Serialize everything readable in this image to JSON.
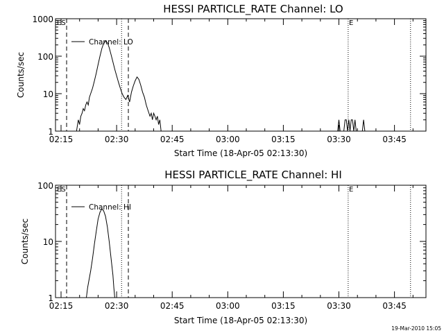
{
  "chart_data": [
    {
      "type": "line",
      "title": "HESSI PARTICLE_RATE Channel: LO",
      "xlabel": "Start Time (18-Apr-05 02:13:30)",
      "ylabel": "Counts/sec",
      "yscale": "log",
      "ylim": [
        1,
        1000
      ],
      "xlim": [
        "02:13:30",
        "03:53:30"
      ],
      "xticks": [
        "02:15",
        "02:30",
        "02:45",
        "03:00",
        "03:15",
        "03:30",
        "03:45"
      ],
      "yticks": [
        "1",
        "10",
        "100",
        "1000"
      ],
      "legend": "top-left",
      "markers": [
        {
          "time": "02:16:30",
          "style": "dashed"
        },
        {
          "time": "02:31:20",
          "style": "dotted"
        },
        {
          "time": "02:33:10",
          "style": "dashed"
        },
        {
          "time": "03:32:30",
          "style": "dotted",
          "label": "E"
        },
        {
          "time": "03:49:20",
          "style": "dotted"
        }
      ],
      "marker_labels": {
        "start": "ES",
        "end": "E"
      },
      "series": [
        {
          "name": "Channel: LO",
          "x": [
            "02:19:10",
            "02:19:40",
            "02:20:00",
            "02:20:20",
            "02:20:40",
            "02:21:00",
            "02:21:20",
            "02:21:40",
            "02:22:00",
            "02:22:20",
            "02:22:40",
            "02:23:00",
            "02:23:30",
            "02:24:00",
            "02:24:30",
            "02:25:00",
            "02:25:30",
            "02:26:00",
            "02:26:30",
            "02:27:00",
            "02:27:30",
            "02:28:00",
            "02:28:30",
            "02:29:00",
            "02:29:30",
            "02:30:00",
            "02:30:30",
            "02:31:00",
            "02:31:30",
            "02:32:00",
            "02:32:30",
            "02:33:00",
            "02:33:30",
            "02:34:00",
            "02:34:30",
            "02:35:00",
            "02:35:30",
            "02:36:00",
            "02:36:30",
            "02:37:00",
            "02:37:30",
            "02:38:00",
            "02:38:30",
            "02:39:00",
            "02:39:20",
            "02:39:40",
            "02:40:00",
            "02:40:20",
            "02:40:40",
            "02:41:00",
            "02:41:20",
            "02:41:40",
            "02:42:00"
          ],
          "y": [
            1,
            2,
            1.5,
            2.5,
            3,
            4,
            3.5,
            5,
            6,
            5,
            8,
            10,
            14,
            22,
            35,
            60,
            100,
            160,
            220,
            250,
            230,
            170,
            110,
            70,
            45,
            30,
            20,
            14,
            10,
            8,
            7,
            9,
            6,
            11,
            16,
            22,
            28,
            24,
            17,
            11,
            8,
            5,
            3.5,
            2.5,
            3,
            2,
            3,
            2.5,
            2,
            2.5,
            1.5,
            2,
            1
          ]
        }
      ],
      "extra_segments": [
        {
          "x": [
            "03:29:40",
            "03:30:00",
            "03:30:20",
            "03:30:40"
          ],
          "y": [
            1,
            2,
            1,
            1
          ]
        },
        {
          "x": [
            "03:31:20",
            "03:31:40",
            "03:32:00",
            "03:32:20",
            "03:32:40",
            "03:33:00",
            "03:33:20",
            "03:33:40",
            "03:34:00",
            "03:34:20",
            "03:34:40"
          ],
          "y": [
            1,
            2,
            2,
            1,
            2,
            1,
            2,
            2,
            1,
            2,
            1
          ]
        },
        {
          "x": [
            "03:36:20",
            "03:36:40",
            "03:37:00"
          ],
          "y": [
            1,
            2,
            1
          ]
        }
      ]
    },
    {
      "type": "line",
      "title": "HESSI PARTICLE_RATE Channel: HI",
      "xlabel": "Start Time (18-Apr-05 02:13:30)",
      "ylabel": "Counts/sec",
      "yscale": "log",
      "ylim": [
        1,
        100
      ],
      "xlim": [
        "02:13:30",
        "03:53:30"
      ],
      "xticks": [
        "02:15",
        "02:30",
        "02:45",
        "03:00",
        "03:15",
        "03:30",
        "03:45"
      ],
      "yticks": [
        "1",
        "10",
        "100"
      ],
      "legend": "top-left",
      "markers": [
        {
          "time": "02:16:30",
          "style": "dashed"
        },
        {
          "time": "02:31:20",
          "style": "dotted"
        },
        {
          "time": "02:33:10",
          "style": "dashed"
        },
        {
          "time": "03:32:30",
          "style": "dotted",
          "label": "E"
        },
        {
          "time": "03:49:20",
          "style": "dotted"
        }
      ],
      "marker_labels": {
        "start": "ES",
        "end": "E"
      },
      "series": [
        {
          "name": "Channel: HI",
          "x": [
            "02:21:50",
            "02:22:10",
            "02:22:30",
            "02:23:00",
            "02:23:30",
            "02:24:00",
            "02:24:30",
            "02:25:00",
            "02:25:30",
            "02:26:00",
            "02:26:30",
            "02:27:00",
            "02:27:30",
            "02:28:00",
            "02:28:30",
            "02:29:00",
            "02:29:15",
            "02:29:30"
          ],
          "y": [
            1,
            1.5,
            2,
            3,
            5,
            9,
            15,
            25,
            33,
            38,
            35,
            28,
            18,
            10,
            5,
            2.5,
            1.5,
            1
          ]
        }
      ]
    }
  ],
  "footer": {
    "stamp": "19-Mar-2010 15:05"
  }
}
